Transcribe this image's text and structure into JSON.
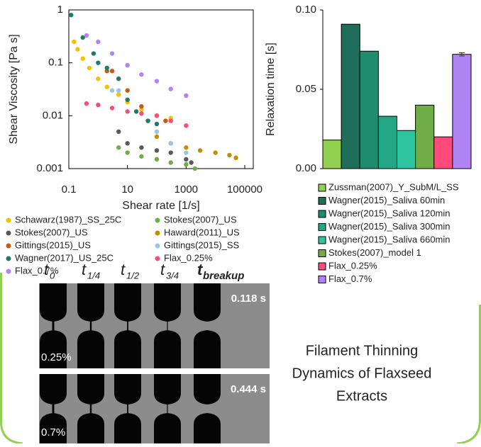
{
  "chart_data": [
    {
      "type": "scatter",
      "x_label": "Shear rate [1/s]",
      "y_label": "Shear Viscosity [Pa s]",
      "xscale": "log",
      "yscale": "log",
      "xlim": [
        0.1,
        100000
      ],
      "ylim": [
        0.001,
        1
      ],
      "xticks": [
        0.1,
        10,
        1000,
        100000
      ],
      "yticks": [
        0.001,
        0.01,
        0.1,
        1
      ],
      "series": [
        {
          "name": "Schawarz(1987)_SS_25C",
          "color": "#f5c000",
          "x": [
            0.15,
            0.2,
            0.3,
            0.5,
            1,
            2,
            5,
            10,
            30,
            100,
            300
          ],
          "values": [
            0.25,
            0.18,
            0.12,
            0.08,
            0.05,
            0.035,
            0.025,
            0.018,
            0.013,
            0.01,
            0.009
          ]
        },
        {
          "name": "Stokes(2007)_US",
          "color": "#70ad47",
          "x": [
            5,
            10,
            30,
            100,
            300,
            1000,
            2000
          ],
          "values": [
            0.0025,
            0.002,
            0.0017,
            0.0015,
            0.0013,
            0.0012,
            0.001
          ]
        },
        {
          "name": "Stokes(2007)_US",
          "color": "#595959",
          "x": [
            5,
            10,
            30,
            100,
            300,
            1000,
            1500
          ],
          "values": [
            0.005,
            0.003,
            0.0025,
            0.0022,
            0.002,
            0.0015,
            0.0013
          ]
        },
        {
          "name": "Haward(2011)_US",
          "color": "#bf9000",
          "x": [
            100,
            300,
            1000,
            3000,
            10000,
            30000,
            50000
          ],
          "values": [
            0.004,
            0.003,
            0.0025,
            0.0022,
            0.002,
            0.0018,
            0.0016
          ]
        },
        {
          "name": "Gittings(2015)_US",
          "color": "#c55a11",
          "x": [
            2,
            3,
            5,
            10,
            30,
            100,
            200
          ],
          "values": [
            0.07,
            0.07,
            0.05,
            0.03,
            0.015,
            0.01,
            0.008
          ]
        },
        {
          "name": "Gittings(2015)_SS",
          "color": "#9dc3e6",
          "x": [
            3,
            5,
            10,
            20,
            50,
            100,
            300,
            1000
          ],
          "values": [
            0.03,
            0.03,
            0.02,
            0.012,
            0.008,
            0.005,
            0.003,
            0.002
          ]
        },
        {
          "name": "Wagner(2017)_US_25C",
          "color": "#1f7a6e",
          "x": [
            0.12,
            0.3,
            0.7,
            1,
            2,
            5,
            10,
            20,
            50,
            100
          ],
          "values": [
            0.8,
            0.3,
            0.15,
            0.1,
            0.08,
            0.05,
            0.02,
            0.012,
            0.008,
            0.007
          ]
        },
        {
          "name": "Flax_0.25%",
          "color": "#ff4b7a",
          "x": [
            0.4,
            1,
            3,
            10,
            30,
            100,
            300,
            1000
          ],
          "values": [
            0.017,
            0.016,
            0.014,
            0.012,
            0.011,
            0.01,
            0.008,
            0.0065
          ]
        },
        {
          "name": "Flax_0.7%",
          "color": "#b084f5",
          "x": [
            0.4,
            1,
            3,
            10,
            30,
            100,
            300,
            1000
          ],
          "values": [
            0.33,
            0.25,
            0.15,
            0.09,
            0.06,
            0.045,
            0.032,
            0.024
          ]
        }
      ]
    },
    {
      "type": "bar",
      "y_label": "Relaxation time [s]",
      "categories": [
        "Zussman(2007)_Y_SubM/L_SS",
        "Wagner(2015)_Saliva 60min",
        "Wagner(2015)_Saliva 120min",
        "Wagner(2015)_Saliva 300min",
        "Wagner(2015)_Saliva 660min",
        "Stokes(2007)_model 1",
        "Flax_0.25%",
        "Flax_0.7%"
      ],
      "values": [
        0.018,
        0.091,
        0.074,
        0.033,
        0.024,
        0.04,
        0.02,
        0.072
      ],
      "errors": [
        null,
        null,
        null,
        null,
        null,
        null,
        null,
        0.001
      ],
      "colors": [
        "#92d050",
        "#1e6e5a",
        "#1f8c6e",
        "#22a683",
        "#2ec4a0",
        "#70ad47",
        "#ff4b7a",
        "#b084f5"
      ],
      "ylim": [
        0,
        0.1
      ],
      "yticks": [
        {
          "value": 0,
          "label": "0.00"
        },
        {
          "value": 0.05,
          "label": "0.05"
        },
        {
          "value": 0.1,
          "label": "0.10"
        }
      ]
    }
  ],
  "time_labels": [
    {
      "t": "t",
      "sub": "0"
    },
    {
      "t": "t",
      "sub": "1/4"
    },
    {
      "t": "t",
      "sub": "1/2"
    },
    {
      "t": "t",
      "sub": "3/4"
    },
    {
      "t": "t",
      "sub": "breakup"
    }
  ],
  "panels": [
    {
      "concentration": "0.25%",
      "time": "0.118 s"
    },
    {
      "concentration": "0.7%",
      "time": "0.444 s"
    }
  ],
  "caption": [
    "Filament Thinning",
    "Dynamics of Flaxseed",
    "Extracts"
  ]
}
